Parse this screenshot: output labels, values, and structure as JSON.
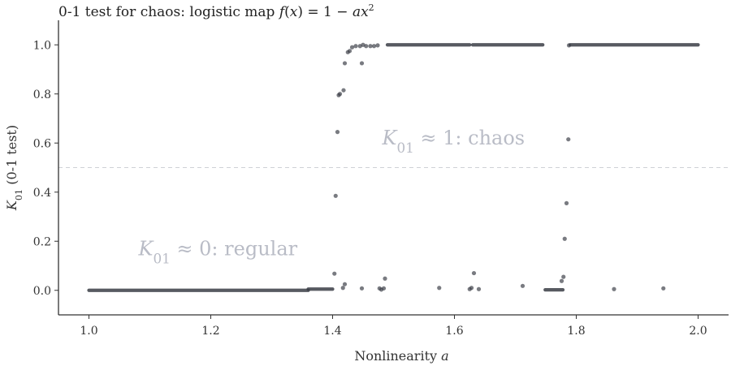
{
  "chart_data": {
    "type": "scatter",
    "title": "0-1 test for chaos: logistic map f(x) = 1 − ax²",
    "xlabel": "Nonlinearity a",
    "ylabel": "K01 (0-1 test)",
    "xlim": [
      0.95,
      2.05
    ],
    "ylim": [
      -0.1,
      1.1
    ],
    "xticks": [
      "1.0",
      "1.2",
      "1.4",
      "1.6",
      "1.8",
      "2.0"
    ],
    "yticks": [
      "0.0",
      "0.2",
      "0.4",
      "0.6",
      "0.8",
      "1.0"
    ],
    "reference_line": {
      "y": 0.5,
      "style": "dashed"
    },
    "annotations": [
      {
        "text": "K01 ≈ 1: chaos",
        "x": 1.5,
        "y": 0.62
      },
      {
        "text": "K01 ≈ 0: regular",
        "x": 1.1,
        "y": 0.17
      }
    ],
    "segments": [
      {
        "x_start": 1.0,
        "x_end": 1.36,
        "y": 0.0
      },
      {
        "x_start": 1.36,
        "x_end": 1.4,
        "y": 0.005
      },
      {
        "x_start": 1.49,
        "x_end": 1.625,
        "y": 1.0
      },
      {
        "x_start": 1.63,
        "x_end": 1.745,
        "y": 1.0
      },
      {
        "x_start": 1.79,
        "x_end": 2.0,
        "y": 1.0
      },
      {
        "x_start": 1.749,
        "x_end": 1.778,
        "y": 0.002
      }
    ],
    "points": [
      [
        1.403,
        0.068
      ],
      [
        1.405,
        0.385
      ],
      [
        1.408,
        0.645
      ],
      [
        1.41,
        0.795
      ],
      [
        1.412,
        0.8
      ],
      [
        1.418,
        0.815
      ],
      [
        1.42,
        0.925
      ],
      [
        1.425,
        0.97
      ],
      [
        1.428,
        0.975
      ],
      [
        1.432,
        0.99
      ],
      [
        1.438,
        0.995
      ],
      [
        1.445,
        0.995
      ],
      [
        1.45,
        1.0
      ],
      [
        1.455,
        0.995
      ],
      [
        1.462,
        0.995
      ],
      [
        1.468,
        0.995
      ],
      [
        1.474,
        0.998
      ],
      [
        1.417,
        0.01
      ],
      [
        1.42,
        0.025
      ],
      [
        1.448,
        0.925
      ],
      [
        1.448,
        0.008
      ],
      [
        1.477,
        0.008
      ],
      [
        1.48,
        0.003
      ],
      [
        1.484,
        0.008
      ],
      [
        1.486,
        0.048
      ],
      [
        1.575,
        0.01
      ],
      [
        1.625,
        0.005
      ],
      [
        1.628,
        0.01
      ],
      [
        1.632,
        0.07
      ],
      [
        1.64,
        0.005
      ],
      [
        1.712,
        0.018
      ],
      [
        1.776,
        0.038
      ],
      [
        1.779,
        0.055
      ],
      [
        1.781,
        0.21
      ],
      [
        1.784,
        0.355
      ],
      [
        1.787,
        0.615
      ],
      [
        1.788,
        0.998
      ],
      [
        1.862,
        0.005
      ],
      [
        1.943,
        0.008
      ]
    ]
  }
}
